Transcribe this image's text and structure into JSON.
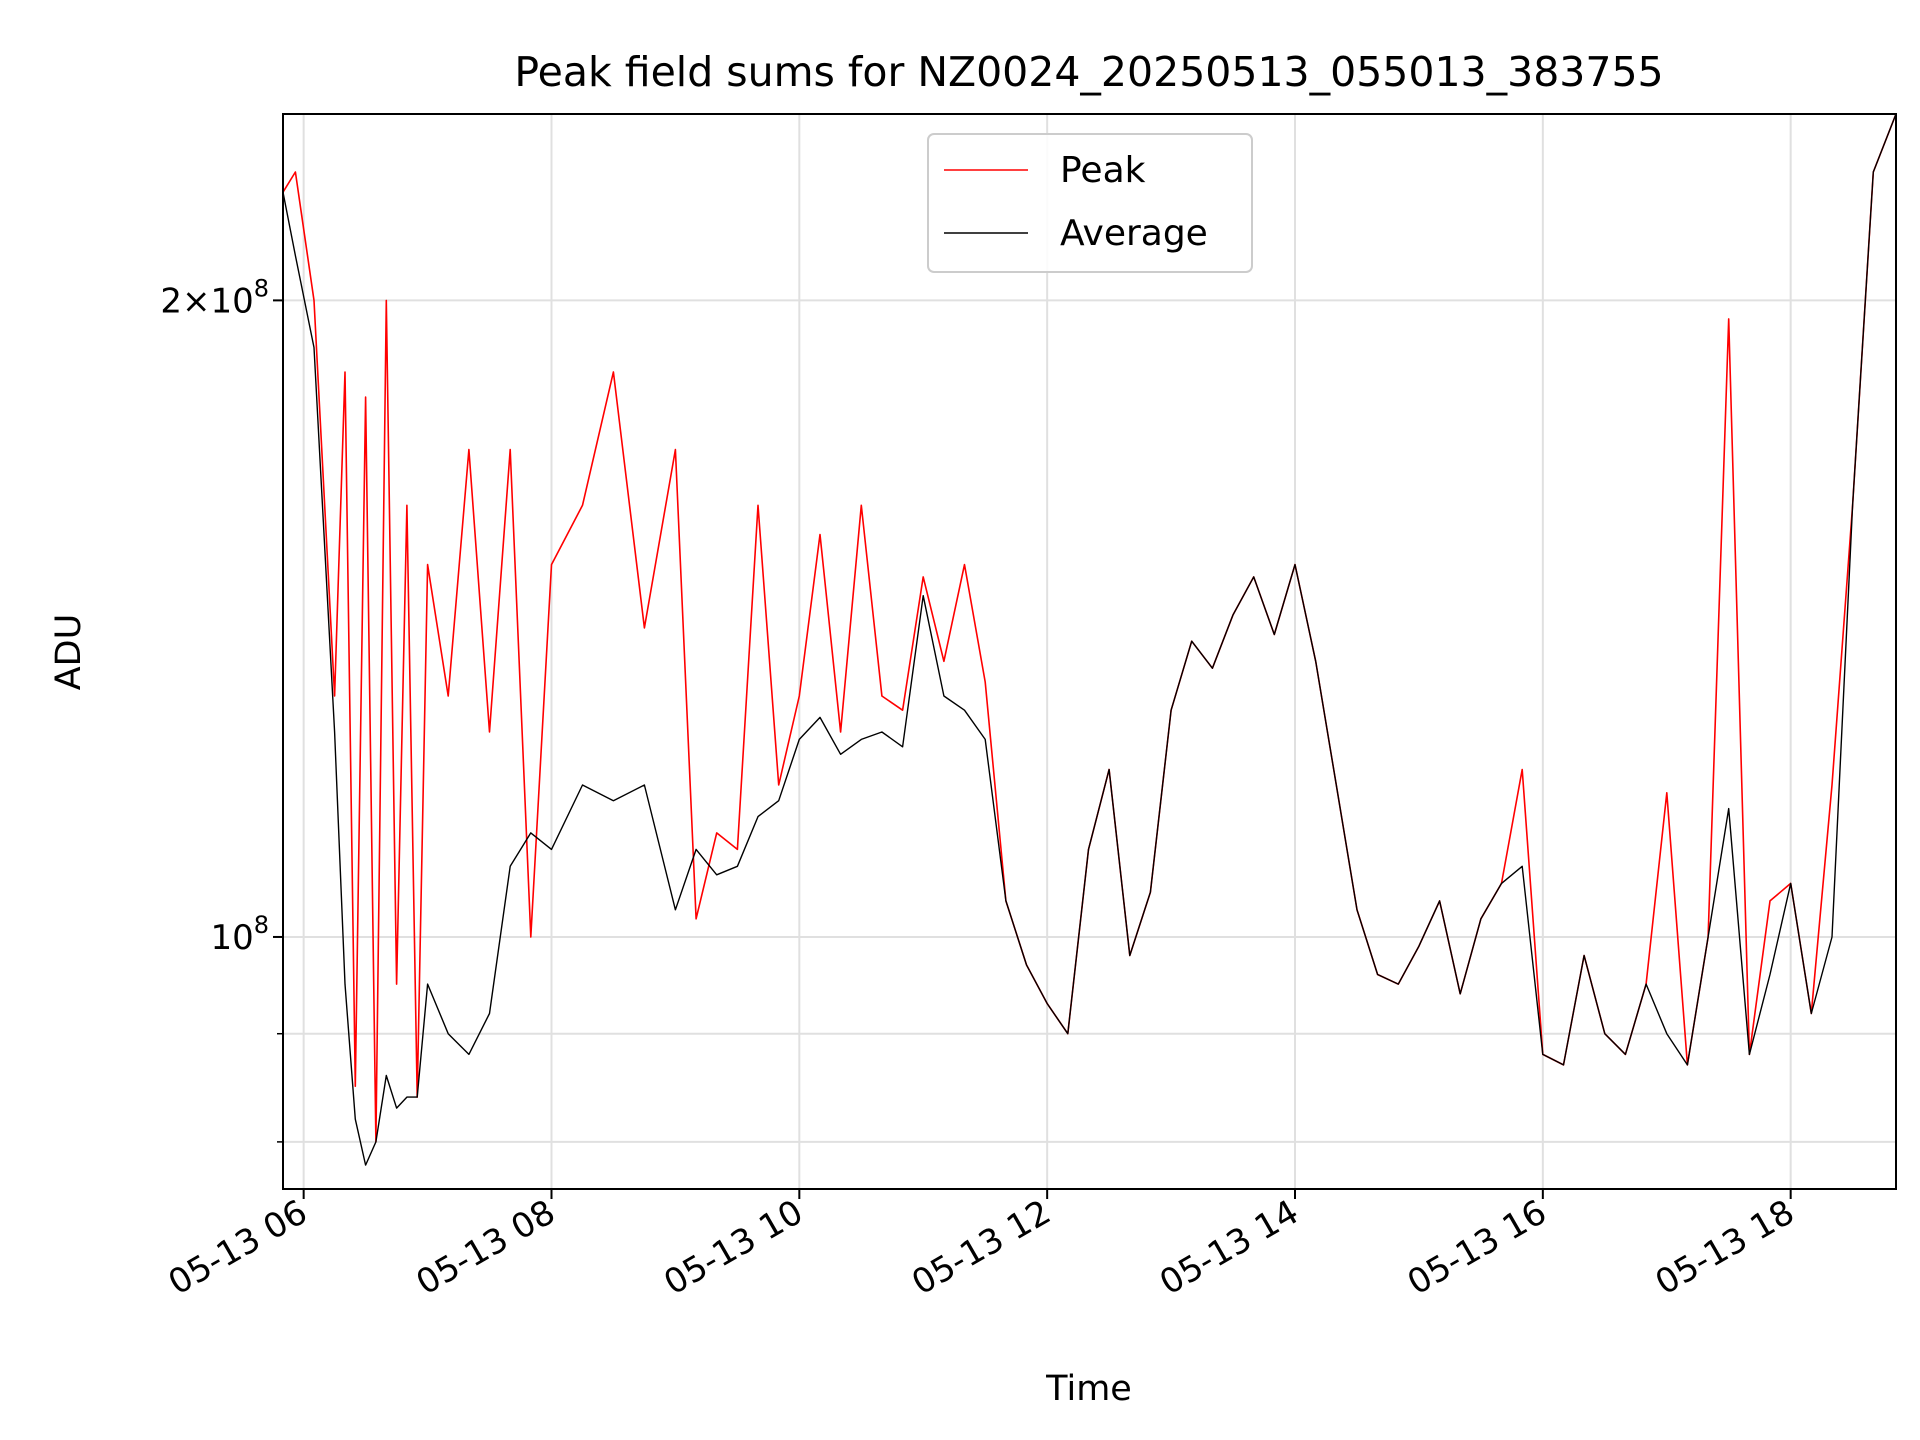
{
  "chart_data": {
    "type": "line",
    "title": "Peak field sums for NZ0024_20250513_055013_383755",
    "xlabel": "Time",
    "ylabel": "ADU",
    "y_scale": "log",
    "grid": true,
    "legend_position": "upper center",
    "x_ticks": [
      "05-13 06",
      "05-13 08",
      "05-13 10",
      "05-13 12",
      "05-13 14",
      "05-13 16",
      "05-13 18"
    ],
    "y_ticks": [
      "10^8",
      "2×10^8"
    ],
    "x_range": [
      "2025-05-13 05:50",
      "2025-05-13 18:51"
    ],
    "ylim": [
      76000000,
      245000000
    ],
    "series": [
      {
        "name": "Peak",
        "color": "#ff0000",
        "x": [
          "05:50",
          "05:56",
          "06:05",
          "06:15",
          "06:20",
          "06:25",
          "06:30",
          "06:35",
          "06:40",
          "06:45",
          "06:50",
          "06:55",
          "07:00",
          "07:10",
          "07:20",
          "07:30",
          "07:40",
          "07:50",
          "08:00",
          "08:15",
          "08:30",
          "08:45",
          "09:00",
          "09:10",
          "09:20",
          "09:30",
          "09:40",
          "09:50",
          "10:00",
          "10:10",
          "10:20",
          "10:30",
          "10:40",
          "10:50",
          "11:00",
          "11:10",
          "11:20",
          "11:30",
          "11:40",
          "11:50",
          "12:00",
          "12:10",
          "12:20",
          "12:30",
          "12:40",
          "12:50",
          "13:00",
          "13:10",
          "13:20",
          "13:30",
          "13:40",
          "13:50",
          "14:00",
          "14:10",
          "14:20",
          "14:30",
          "14:40",
          "14:50",
          "15:00",
          "15:10",
          "15:20",
          "15:30",
          "15:40",
          "15:50",
          "16:00",
          "16:10",
          "16:20",
          "16:30",
          "16:40",
          "16:50",
          "17:00",
          "17:10",
          "17:20",
          "17:30",
          "17:40",
          "17:50",
          "18:00",
          "18:10",
          "18:20",
          "18:30",
          "18:40",
          "18:51"
        ],
        "y": [
          225000000,
          230000000,
          200000000,
          130000000,
          185000000,
          85000000,
          180000000,
          80000000,
          200000000,
          95000000,
          160000000,
          84000000,
          150000000,
          130000000,
          170000000,
          125000000,
          170000000,
          100000000,
          150000000,
          160000000,
          185000000,
          140000000,
          170000000,
          102000000,
          112000000,
          110000000,
          160000000,
          118000000,
          130000000,
          155000000,
          125000000,
          160000000,
          130000000,
          128000000,
          148000000,
          135000000,
          150000000,
          132000000,
          104000000,
          97000000,
          93000000,
          90000000,
          110000000,
          120000000,
          98000000,
          105000000,
          128000000,
          138000000,
          134000000,
          142000000,
          148000000,
          139000000,
          150000000,
          135000000,
          118000000,
          103000000,
          96000000,
          95000000,
          99000000,
          104000000,
          94000000,
          102000000,
          106000000,
          120000000,
          88000000,
          87000000,
          98000000,
          90000000,
          88000000,
          95000000,
          117000000,
          87000000,
          100000000,
          196000000,
          88000000,
          104000000,
          106000000,
          92000000,
          118000000,
          160000000,
          230000000,
          245000000
        ]
      },
      {
        "name": "Average",
        "color": "#000000",
        "x": [
          "05:50",
          "05:56",
          "06:05",
          "06:15",
          "06:20",
          "06:25",
          "06:30",
          "06:35",
          "06:40",
          "06:45",
          "06:50",
          "06:55",
          "07:00",
          "07:10",
          "07:20",
          "07:30",
          "07:40",
          "07:50",
          "08:00",
          "08:15",
          "08:30",
          "08:45",
          "09:00",
          "09:10",
          "09:20",
          "09:30",
          "09:40",
          "09:50",
          "10:00",
          "10:10",
          "10:20",
          "10:30",
          "10:40",
          "10:50",
          "11:00",
          "11:10",
          "11:20",
          "11:30",
          "11:40",
          "11:50",
          "12:00",
          "12:10",
          "12:20",
          "12:30",
          "12:40",
          "12:50",
          "13:00",
          "13:10",
          "13:20",
          "13:30",
          "13:40",
          "13:50",
          "14:00",
          "14:10",
          "14:20",
          "14:30",
          "14:40",
          "14:50",
          "15:00",
          "15:10",
          "15:20",
          "15:30",
          "15:40",
          "15:50",
          "16:00",
          "16:10",
          "16:20",
          "16:30",
          "16:40",
          "16:50",
          "17:00",
          "17:10",
          "17:20",
          "17:30",
          "17:40",
          "17:50",
          "18:00",
          "18:10",
          "18:20",
          "18:30",
          "18:40",
          "18:51"
        ],
        "y": [
          225000000,
          210000000,
          190000000,
          125000000,
          95000000,
          82000000,
          78000000,
          80000000,
          86000000,
          83000000,
          84000000,
          84000000,
          95000000,
          90000000,
          88000000,
          92000000,
          108000000,
          112000000,
          110000000,
          118000000,
          116000000,
          118000000,
          103000000,
          110000000,
          107000000,
          108000000,
          114000000,
          116000000,
          124000000,
          127000000,
          122000000,
          124000000,
          125000000,
          123000000,
          145000000,
          130000000,
          128000000,
          124000000,
          104000000,
          97000000,
          93000000,
          90000000,
          110000000,
          120000000,
          98000000,
          105000000,
          128000000,
          138000000,
          134000000,
          142000000,
          148000000,
          139000000,
          150000000,
          135000000,
          118000000,
          103000000,
          96000000,
          95000000,
          99000000,
          104000000,
          94000000,
          102000000,
          106000000,
          108000000,
          88000000,
          87000000,
          98000000,
          90000000,
          88000000,
          95000000,
          90000000,
          87000000,
          100000000,
          115000000,
          88000000,
          96000000,
          106000000,
          92000000,
          100000000,
          160000000,
          230000000,
          245000000
        ]
      }
    ]
  }
}
